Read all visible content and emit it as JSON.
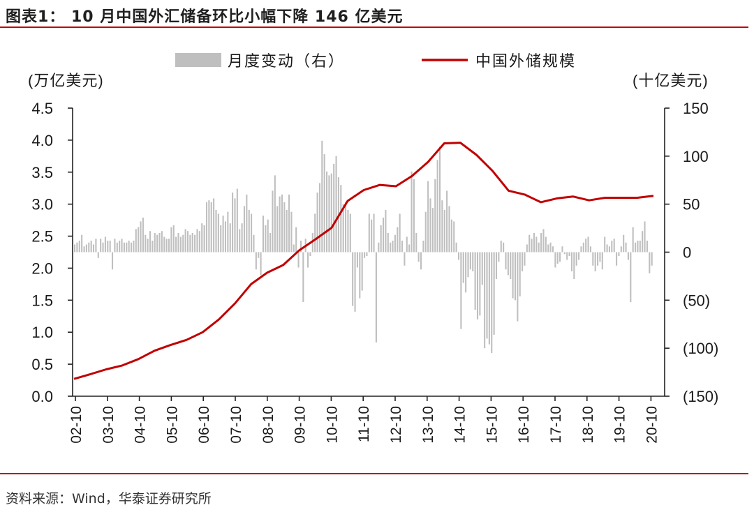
{
  "figure": {
    "title": "图表1：  10 月中国外汇储备环比小幅下降 146 亿美元",
    "source": "资料来源：Wind，华泰证券研究所"
  },
  "chart_data": {
    "type": "bar+line",
    "left_unit": "(万亿美元)",
    "right_unit": "(十亿美元)",
    "legend": [
      "月度变动（右）",
      "中国外储规模"
    ],
    "legend_position": "top",
    "x_ticks": [
      "02-10",
      "03-10",
      "04-10",
      "05-10",
      "06-10",
      "07-10",
      "08-10",
      "09-10",
      "10-10",
      "11-10",
      "12-10",
      "13-10",
      "14-10",
      "15-10",
      "16-10",
      "17-10",
      "18-10",
      "19-10",
      "20-10"
    ],
    "y_left": {
      "range": [
        0,
        4.5
      ],
      "ticks": [
        "0.0",
        "0.5",
        "1.0",
        "1.5",
        "2.0",
        "2.5",
        "3.0",
        "3.5",
        "4.0",
        "4.5"
      ]
    },
    "y_right": {
      "range": [
        -150,
        150
      ],
      "ticks": [
        "(150)",
        "(100)",
        "(50)",
        "0",
        "50",
        "100",
        "150"
      ]
    },
    "grid": false,
    "series": [
      {
        "name": "月度变动（右）",
        "type": "bar",
        "axis": "right",
        "color": "#bfbfbf",
        "values": [
          8,
          10,
          12,
          18,
          6,
          8,
          10,
          12,
          8,
          14,
          -6,
          14,
          10,
          16,
          12,
          12,
          -18,
          14,
          10,
          12,
          14,
          10,
          10,
          12,
          10,
          12,
          24,
          26,
          32,
          36,
          18,
          14,
          22,
          12,
          20,
          18,
          20,
          22,
          16,
          14,
          14,
          26,
          28,
          16,
          20,
          16,
          18,
          24,
          22,
          18,
          20,
          18,
          24,
          22,
          30,
          28,
          52,
          54,
          52,
          56,
          44,
          40,
          28,
          38,
          32,
          42,
          30,
          62,
          56,
          66,
          24,
          30,
          48,
          60,
          44,
          40,
          18,
          -18,
          -6,
          -24,
          38,
          28,
          34,
          20,
          64,
          80,
          48,
          58,
          60,
          52,
          44,
          60,
          42,
          8,
          26,
          -16,
          12,
          -52,
          14,
          -16,
          -4,
          20,
          40,
          62,
          72,
          116,
          102,
          84,
          80,
          82,
          92,
          100,
          78,
          70,
          50,
          52,
          44,
          40,
          -56,
          -62,
          -16,
          -48,
          -40,
          -6,
          -4,
          40,
          34,
          40,
          -94,
          10,
          28,
          36,
          44,
          20,
          10,
          12,
          18,
          26,
          40,
          12,
          -14,
          16,
          8,
          84,
          76,
          20,
          -10,
          -18,
          12,
          42,
          74,
          56,
          46,
          76,
          96,
          110,
          54,
          44,
          64,
          48,
          34,
          32,
          10,
          -8,
          -80,
          -32,
          -42,
          -26,
          -18,
          -20,
          -60,
          -70,
          -66,
          -34,
          -100,
          -90,
          -96,
          -105,
          -86,
          -28,
          -10,
          12,
          10,
          -18,
          -24,
          -28,
          -48,
          -50,
          -72,
          -46,
          -20,
          -14,
          8,
          18,
          14,
          20,
          16,
          10,
          20,
          24,
          16,
          8,
          10,
          6,
          -16,
          -12,
          -10,
          6,
          -2,
          -8,
          -4,
          -20,
          -28,
          -14,
          -8,
          6,
          10,
          14,
          16,
          6,
          -14,
          -20,
          -14,
          -10,
          -18,
          16,
          8,
          6,
          12,
          14,
          -14,
          -4,
          6,
          18,
          10,
          -8,
          -52,
          26,
          10,
          12,
          12,
          22,
          32,
          12,
          -22,
          -14
        ]
      },
      {
        "name": "中国外储规模",
        "type": "line",
        "axis": "left",
        "color": "#c00000",
        "x": [
          "2002-10",
          "2003-03",
          "2003-10",
          "2004-04",
          "2004-10",
          "2005-04",
          "2005-10",
          "2006-04",
          "2006-10",
          "2007-04",
          "2007-10",
          "2008-04",
          "2008-10",
          "2009-04",
          "2009-10",
          "2010-04",
          "2010-10",
          "2011-04",
          "2011-10",
          "2012-04",
          "2012-10",
          "2013-04",
          "2013-10",
          "2014-04",
          "2014-10",
          "2015-04",
          "2015-10",
          "2016-04",
          "2016-10",
          "2017-04",
          "2017-10",
          "2018-04",
          "2018-10",
          "2019-04",
          "2019-10",
          "2020-04",
          "2020-10"
        ],
        "values": [
          0.27,
          0.33,
          0.42,
          0.48,
          0.58,
          0.71,
          0.8,
          0.88,
          1.0,
          1.2,
          1.45,
          1.75,
          1.93,
          2.05,
          2.28,
          2.45,
          2.63,
          3.05,
          3.22,
          3.3,
          3.28,
          3.44,
          3.66,
          3.95,
          3.96,
          3.77,
          3.52,
          3.21,
          3.15,
          3.03,
          3.09,
          3.12,
          3.06,
          3.1,
          3.1,
          3.1,
          3.13
        ]
      }
    ]
  }
}
